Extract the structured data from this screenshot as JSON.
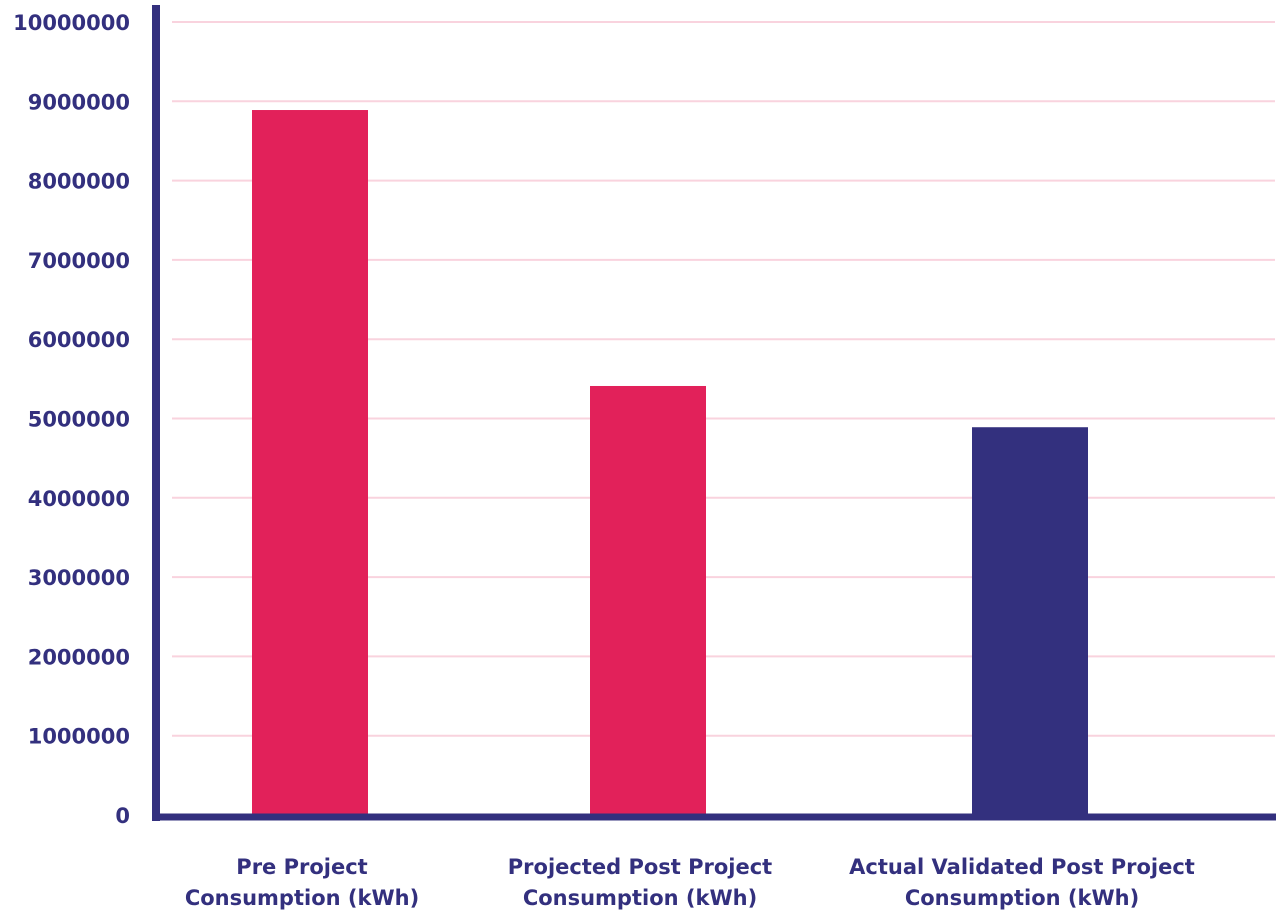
{
  "chart_data": {
    "type": "bar",
    "title": "",
    "xlabel": "",
    "ylabel": "",
    "categories": [
      [
        "Pre Project",
        "Consumption (kWh)"
      ],
      [
        "Projected Post Project",
        "Consumption (kWh)"
      ],
      [
        "Actual Validated Post Project",
        "Consumption (kWh)"
      ]
    ],
    "values": [
      8890000,
      5410000,
      4890000
    ],
    "bar_colors": [
      "#E2215A",
      "#E2215A",
      "#33307E"
    ],
    "ylim": [
      0,
      10000000
    ],
    "yticks": [
      0,
      1000000,
      2000000,
      3000000,
      4000000,
      5000000,
      6000000,
      7000000,
      8000000,
      9000000,
      10000000
    ],
    "ytick_labels": [
      "0",
      "1000000",
      "2000000",
      "3000000",
      "4000000",
      "5000000",
      "6000000",
      "7000000",
      "8000000",
      "9000000",
      "10000000"
    ],
    "grid": true,
    "colors": {
      "axis": "#33307E",
      "grid": "#F9D3DE",
      "text": "#33307E"
    }
  }
}
